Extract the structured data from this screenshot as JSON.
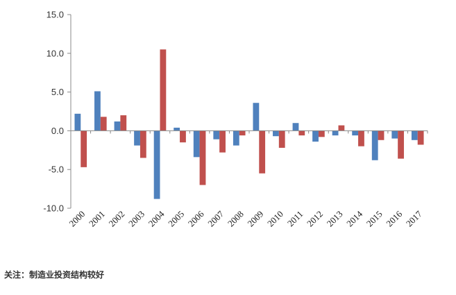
{
  "chart_data": {
    "type": "bar",
    "title": "",
    "xlabel": "",
    "ylabel": "",
    "categories": [
      "2000",
      "2001",
      "2002",
      "2003",
      "2004",
      "2005",
      "2006",
      "2007",
      "2008",
      "2009",
      "2010",
      "2011",
      "2012",
      "2013",
      "2014",
      "2015",
      "2016",
      "2017"
    ],
    "ylim": [
      -10,
      15
    ],
    "yticks": [
      "15.0",
      "10.0",
      "5.0",
      "0.0",
      "-5.0",
      "-10.0"
    ],
    "ytick_values": [
      15,
      10,
      5,
      0,
      -5,
      -10
    ],
    "legend": "none",
    "grid": false,
    "series": [
      {
        "color": "#4F81BD",
        "values": [
          2.2,
          5.1,
          1.2,
          -1.9,
          -8.8,
          0.4,
          -3.4,
          -1.1,
          -1.9,
          3.6,
          -0.7,
          1.0,
          -1.4,
          -0.6,
          -0.6,
          -3.8,
          -1.0,
          -1.2
        ]
      },
      {
        "color": "#C0504D",
        "values": [
          -4.7,
          1.8,
          2.0,
          -3.5,
          10.5,
          -1.5,
          -7.0,
          -2.8,
          -0.6,
          -5.5,
          -2.2,
          -0.6,
          -0.8,
          0.7,
          -2.0,
          -1.2,
          -3.6,
          -1.8
        ]
      }
    ]
  },
  "note": {
    "text": "关注：制造业投资结构较好"
  }
}
